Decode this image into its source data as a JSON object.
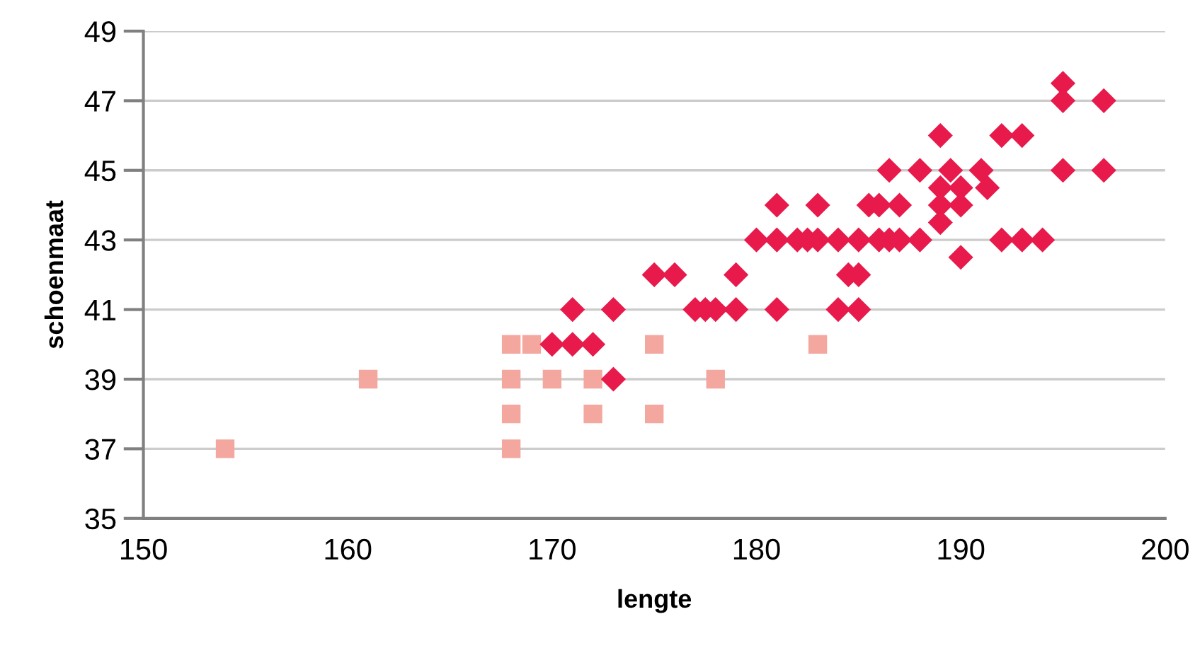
{
  "chart_data": {
    "type": "scatter",
    "xlabel": "lengte",
    "ylabel": "schoenmaat",
    "xlim": [
      150,
      200
    ],
    "xticks": [
      150,
      160,
      170,
      180,
      190,
      200
    ],
    "ylim": [
      35,
      49
    ],
    "yticks": [
      35,
      37,
      39,
      41,
      43,
      45,
      47,
      49
    ],
    "grid": "y",
    "series": [
      {
        "color": "#f4a79f",
        "marker": "square",
        "x": [
          154,
          161,
          168,
          168,
          168,
          168,
          169,
          170,
          172,
          172,
          175,
          175,
          178,
          183
        ],
        "values": [
          37,
          39,
          40,
          39,
          38,
          37,
          40,
          39,
          39,
          38,
          40,
          38,
          39,
          40
        ]
      },
      {
        "color": "#e81a4b",
        "marker": "diamond",
        "x": [
          170,
          171,
          172,
          171,
          173,
          173,
          175,
          176,
          195,
          195,
          197,
          189,
          192,
          193,
          195,
          197,
          186.5,
          188,
          189.5,
          191,
          189,
          190,
          191.3,
          189,
          190,
          189,
          190,
          181,
          183,
          185.5,
          186,
          187,
          180,
          181,
          182,
          182.5,
          183,
          184,
          185,
          186,
          186.5,
          187,
          188,
          192,
          193,
          194,
          179,
          184.5,
          185,
          177,
          177.5,
          178,
          179,
          181,
          184,
          185
        ],
        "values": [
          40,
          40,
          40,
          41,
          41,
          39,
          42,
          42,
          47.5,
          47,
          47,
          46,
          46,
          46,
          45,
          45,
          45,
          45,
          45,
          45,
          44.5,
          44.5,
          44.5,
          44,
          44,
          43.5,
          42.5,
          44,
          44,
          44,
          44,
          44,
          43,
          43,
          43,
          43,
          43,
          43,
          43,
          43,
          43,
          43,
          43,
          43,
          43,
          43,
          42,
          42,
          42,
          41,
          41,
          41,
          41,
          41,
          41,
          41
        ]
      }
    ]
  }
}
